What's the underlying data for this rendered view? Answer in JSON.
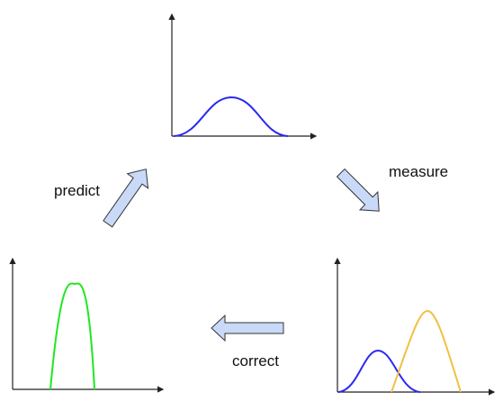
{
  "labels": {
    "measure": "measure",
    "predict": "predict",
    "correct": "correct"
  },
  "colors": {
    "blue": "#2a2af0",
    "yellow": "#f0c040",
    "green": "#22e622",
    "arrow_fill": "#c9daf8",
    "arrow_stroke": "#333333",
    "axis": "#222222"
  },
  "icons": {
    "measure_arrow": "arrow-down-right-icon",
    "predict_arrow": "arrow-up-right-icon",
    "correct_arrow": "arrow-left-icon"
  }
}
